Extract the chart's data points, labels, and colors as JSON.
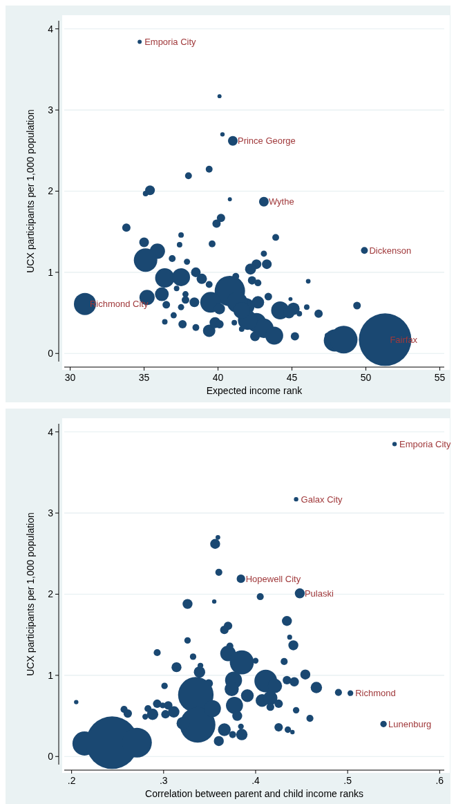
{
  "chart_data": [
    {
      "type": "bubble",
      "xlabel": "Expected income rank",
      "ylabel": "UCX participants per 1,000 population",
      "color": "#1a4872",
      "grid": "y",
      "xlim": [
        29.6,
        55.3
      ],
      "ylim": [
        -0.1,
        4.1
      ],
      "xticks": [
        30,
        35,
        40,
        45,
        50,
        55
      ],
      "yticks": [
        0,
        1,
        2,
        3,
        4
      ],
      "x": [
        34.7,
        40.1,
        40.3,
        41.0,
        39.4,
        38.0,
        35.4,
        35.1,
        40.8,
        43.1,
        40.2,
        39.9,
        33.8,
        35.0,
        35.9,
        35.1,
        37.5,
        37.4,
        36.9,
        37.9,
        39.6,
        43.9,
        43.1,
        43.3,
        42.6,
        42.2,
        49.9,
        46.1,
        36.4,
        37.5,
        38.5,
        38.9,
        39.4,
        40.8,
        41.2,
        42.3,
        42.7,
        43.4,
        44.9,
        35.2,
        36.2,
        37.2,
        37.8,
        37.8,
        36.5,
        38.4,
        39.5,
        40.1,
        42.7,
        41.9,
        31.0,
        37.5,
        37.0,
        36.4,
        37.6,
        38.5,
        39.4,
        39.8,
        40.1,
        41.1,
        41.6,
        42.6,
        42.5,
        43.1,
        43.8,
        44.2,
        45.1,
        44.8,
        45.5,
        46.0,
        46.8,
        45.2,
        49.4,
        47.4,
        47.9,
        48.5,
        51.3,
        41.3,
        42.0,
        41.6
      ],
      "values": [
        3.84,
        3.17,
        2.7,
        2.62,
        2.27,
        2.19,
        2.01,
        1.97,
        1.9,
        1.87,
        1.67,
        1.6,
        1.55,
        1.37,
        1.26,
        1.15,
        1.46,
        1.34,
        1.17,
        1.13,
        1.35,
        1.43,
        1.23,
        1.1,
        1.1,
        1.04,
        1.27,
        0.89,
        0.93,
        0.94,
        1.0,
        0.92,
        0.85,
        0.77,
        0.95,
        0.9,
        0.87,
        0.7,
        0.67,
        0.69,
        0.73,
        0.8,
        0.73,
        0.66,
        0.6,
        0.63,
        0.63,
        0.55,
        0.63,
        0.58,
        0.61,
        0.57,
        0.47,
        0.39,
        0.36,
        0.32,
        0.28,
        0.38,
        0.36,
        0.38,
        0.3,
        0.38,
        0.21,
        0.31,
        0.22,
        0.53,
        0.55,
        0.5,
        0.49,
        0.57,
        0.49,
        0.21,
        0.59,
        0.22,
        0.16,
        0.17,
        0.17,
        0.63,
        0.41,
        0.53
      ],
      "sizes": [
        0.006,
        0.006,
        0.007,
        0.034,
        0.017,
        0.017,
        0.034,
        0.011,
        0.006,
        0.034,
        0.025,
        0.025,
        0.025,
        0.034,
        0.084,
        0.2,
        0.011,
        0.011,
        0.017,
        0.014,
        0.017,
        0.017,
        0.014,
        0.034,
        0.034,
        0.044,
        0.017,
        0.008,
        0.136,
        0.117,
        0.034,
        0.039,
        0.017,
        0.335,
        0.017,
        0.025,
        0.017,
        0.021,
        0.006,
        0.084,
        0.069,
        0.011,
        0.014,
        0.021,
        0.021,
        0.034,
        0.156,
        0.044,
        0.056,
        0.1,
        0.177,
        0.014,
        0.014,
        0.011,
        0.025,
        0.017,
        0.056,
        0.044,
        0.025,
        0.011,
        0.011,
        0.136,
        0.034,
        0.136,
        0.117,
        0.117,
        0.056,
        0.044,
        0.011,
        0.011,
        0.025,
        0.025,
        0.021,
        0.011,
        0.177,
        0.277,
        1,
        0.156,
        0.136,
        0.1
      ],
      "annotations": [
        {
          "text": "Emporia City",
          "x": 34.7,
          "y": 3.84
        },
        {
          "text": "Prince George",
          "x": 41.0,
          "y": 2.62
        },
        {
          "text": "Wythe",
          "x": 43.1,
          "y": 1.87
        },
        {
          "text": "Dickenson",
          "x": 49.9,
          "y": 1.27
        },
        {
          "text": "Richmond City",
          "x": 31.0,
          "y": 0.61
        },
        {
          "text": "Fairfax",
          "x": 51.3,
          "y": 0.17
        }
      ]
    },
    {
      "type": "bubble",
      "xlabel": "Correlation between parent and child income ranks",
      "ylabel": "UCX participants per 1,000 population",
      "color": "#1a4872",
      "grid": "y",
      "xlim": [
        0.192,
        0.605
      ],
      "ylim": [
        -0.1,
        4.1
      ],
      "xticks": [
        {
          "value": 0.2,
          "label": ".2"
        },
        {
          "value": 0.3,
          "label": ".3"
        },
        {
          "value": 0.4,
          "label": ".4"
        },
        {
          "value": 0.5,
          "label": ".5"
        },
        {
          "value": 0.6,
          "label": ".6"
        }
      ],
      "yticks": [
        0,
        1,
        2,
        3,
        4
      ],
      "x": [
        0.551,
        0.444,
        0.359,
        0.356,
        0.36,
        0.384,
        0.448,
        0.405,
        0.355,
        0.326,
        0.434,
        0.37,
        0.366,
        0.437,
        0.441,
        0.326,
        0.293,
        0.332,
        0.314,
        0.339,
        0.34,
        0.37,
        0.372,
        0.385,
        0.4,
        0.431,
        0.454,
        0.376,
        0.374,
        0.411,
        0.421,
        0.434,
        0.442,
        0.466,
        0.49,
        0.503,
        0.539,
        0.205,
        0.301,
        0.349,
        0.335,
        0.337,
        0.353,
        0.391,
        0.377,
        0.38,
        0.407,
        0.416,
        0.416,
        0.425,
        0.444,
        0.459,
        0.425,
        0.435,
        0.44,
        0.384,
        0.385,
        0.375,
        0.366,
        0.36,
        0.293,
        0.299,
        0.305,
        0.311,
        0.302,
        0.288,
        0.283,
        0.28,
        0.257,
        0.261,
        0.214,
        0.244,
        0.271,
        0.321
      ],
      "values": [
        3.85,
        3.17,
        2.7,
        2.62,
        2.27,
        2.19,
        2.01,
        1.97,
        1.91,
        1.88,
        1.67,
        1.61,
        1.56,
        1.47,
        1.37,
        1.43,
        1.28,
        1.23,
        1.1,
        1.04,
        1.12,
        1.27,
        1.36,
        1.16,
        1.18,
        1.17,
        1.01,
        0.94,
        0.83,
        0.93,
        0.87,
        0.94,
        0.92,
        0.85,
        0.79,
        0.78,
        0.4,
        0.67,
        0.87,
        0.9,
        0.76,
        0.39,
        0.59,
        0.75,
        0.63,
        0.5,
        0.69,
        0.72,
        0.61,
        0.65,
        0.57,
        0.47,
        0.36,
        0.33,
        0.3,
        0.37,
        0.27,
        0.27,
        0.33,
        0.19,
        0.65,
        0.63,
        0.63,
        0.55,
        0.52,
        0.52,
        0.59,
        0.49,
        0.58,
        0.53,
        0.16,
        0.17,
        0.17,
        0.41
      ],
      "sizes": [
        0.007,
        0.007,
        0.008,
        0.036,
        0.018,
        0.026,
        0.036,
        0.018,
        0.007,
        0.036,
        0.036,
        0.026,
        0.026,
        0.009,
        0.036,
        0.015,
        0.018,
        0.015,
        0.036,
        0.047,
        0.012,
        0.088,
        0.018,
        0.211,
        0.012,
        0.018,
        0.036,
        0.105,
        0.073,
        0.187,
        0.073,
        0.026,
        0.031,
        0.047,
        0.018,
        0.012,
        0.015,
        0.007,
        0.015,
        0.026,
        0.457,
        0.457,
        0.105,
        0.059,
        0.105,
        0.036,
        0.059,
        0.073,
        0.022,
        0.026,
        0.015,
        0.018,
        0.026,
        0.015,
        0.007,
        0.012,
        0.047,
        0.018,
        0.059,
        0.036,
        0.026,
        0.012,
        0.026,
        0.047,
        0.026,
        0.047,
        0.018,
        0.012,
        0.018,
        0.026,
        0.211,
        1,
        0.322,
        0.059
      ],
      "annotations": [
        {
          "text": "Emporia City",
          "x": 0.551,
          "y": 3.85
        },
        {
          "text": "Galax City",
          "x": 0.444,
          "y": 3.17
        },
        {
          "text": "Hopewell City",
          "x": 0.384,
          "y": 2.19
        },
        {
          "text": "Pulaski",
          "x": 0.448,
          "y": 2.01
        },
        {
          "text": "Richmond",
          "x": 0.503,
          "y": 0.78
        },
        {
          "text": "Lunenburg",
          "x": 0.539,
          "y": 0.4
        }
      ]
    }
  ]
}
